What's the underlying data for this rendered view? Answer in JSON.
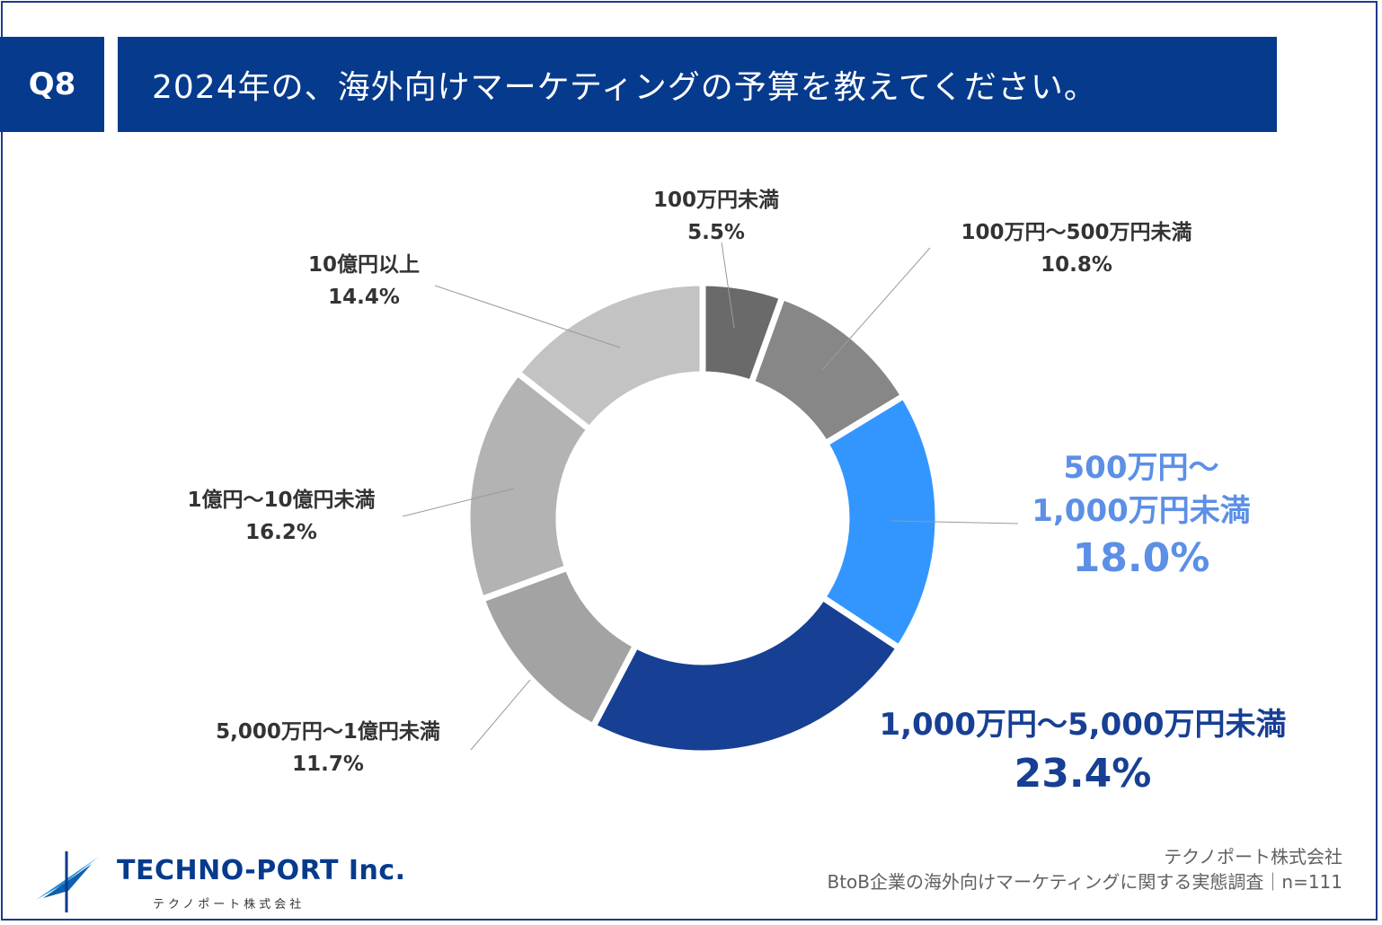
{
  "header": {
    "question_no": "Q8",
    "question": "2024年の、海外向けマーケティングの予算を教えてください。"
  },
  "chart_data": {
    "type": "pie",
    "donut": true,
    "categories": [
      "100万円未満",
      "100万円〜500万円未満",
      "500万円〜1,000万円未満",
      "1,000万円〜5,000万円未満",
      "5,000万円〜1億円未満",
      "1億円〜10億円未満",
      "10億円以上"
    ],
    "label_lines": [
      [
        "100万円未満"
      ],
      [
        "100万円〜500万円未満"
      ],
      [
        "500万円〜",
        "1,000万円未満"
      ],
      [
        "1,000万円〜5,000万円未満"
      ],
      [
        "5,000万円〜1億円未満"
      ],
      [
        "1億円〜10億円未満"
      ],
      [
        "10億円以上"
      ]
    ],
    "values": [
      5.5,
      10.8,
      18.0,
      23.4,
      11.7,
      16.2,
      14.4
    ],
    "value_labels": [
      "5.5%",
      "10.8%",
      "18.0%",
      "23.4%",
      "11.7%",
      "16.2%",
      "14.4%"
    ],
    "colors": [
      "#6a6a6a",
      "#878787",
      "#3396ff",
      "#173f94",
      "#a3a3a3",
      "#b3b3b3",
      "#c3c3c3"
    ],
    "label_colors": [
      "#333333",
      "#333333",
      "#5c8fe6",
      "#173f94",
      "#333333",
      "#333333",
      "#333333"
    ],
    "emphasized": [
      false,
      false,
      true,
      true,
      false,
      false,
      false
    ]
  },
  "footer": {
    "company": "テクノポート株式会社",
    "survey": "BtoB企業の海外向けマーケティングに関する実態調査｜n=111"
  },
  "logo": {
    "name": "TECHNO-PORT",
    "suffix": "Inc.",
    "sub": "テクノポート株式会社"
  }
}
